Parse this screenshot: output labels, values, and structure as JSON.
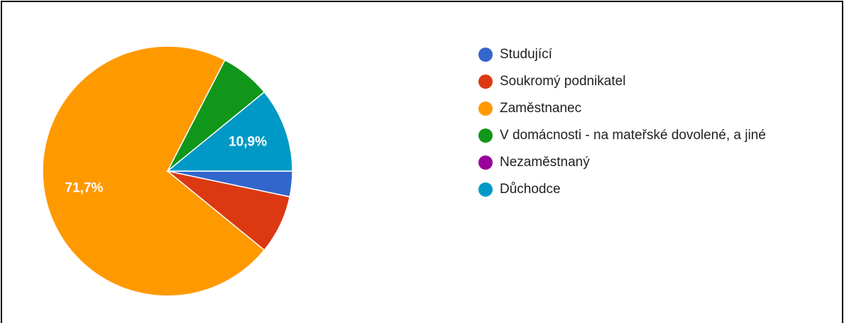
{
  "chart_data": {
    "type": "pie",
    "categories": [
      "Studující",
      "Soukromý podnikatel",
      "Zaměstnanec",
      "V domácnosti - na mateřské dovolené, a jiné",
      "Nezaměstnaný",
      "Důchodce"
    ],
    "values": [
      3.3,
      7.6,
      71.7,
      6.5,
      0,
      10.9
    ],
    "value_labels": [
      null,
      null,
      "71,7%",
      null,
      null,
      "10,9%"
    ],
    "colors": [
      "#3366cc",
      "#dc3912",
      "#ff9900",
      "#109618",
      "#990099",
      "#0099c6"
    ]
  }
}
